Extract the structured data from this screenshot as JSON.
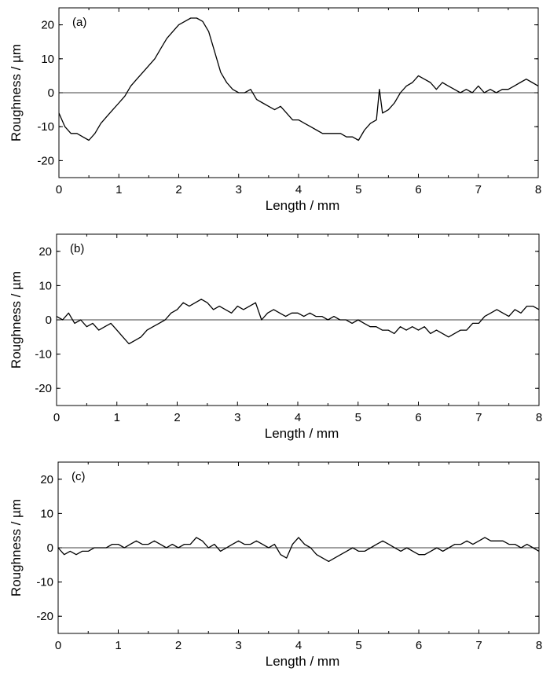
{
  "chart_data": [
    {
      "type": "line",
      "panel_label": "(a)",
      "xlabel": "Length / mm",
      "ylabel": "Roughness / µm",
      "xlim": [
        0,
        8
      ],
      "ylim": [
        -25,
        25
      ],
      "xticks": [
        0,
        1,
        2,
        3,
        4,
        5,
        6,
        7,
        8
      ],
      "yticks": [
        -20,
        -10,
        0,
        10,
        20
      ],
      "zero_line": true,
      "series": [
        {
          "color": "#000000",
          "x": [
            0,
            0.1,
            0.2,
            0.3,
            0.4,
            0.5,
            0.6,
            0.7,
            0.8,
            0.9,
            1.0,
            1.1,
            1.2,
            1.3,
            1.4,
            1.5,
            1.6,
            1.7,
            1.8,
            1.9,
            2.0,
            2.1,
            2.2,
            2.3,
            2.4,
            2.5,
            2.6,
            2.7,
            2.8,
            2.9,
            3.0,
            3.1,
            3.2,
            3.3,
            3.4,
            3.5,
            3.6,
            3.7,
            3.8,
            3.9,
            4.0,
            4.1,
            4.2,
            4.3,
            4.4,
            4.5,
            4.6,
            4.7,
            4.8,
            4.9,
            5.0,
            5.1,
            5.2,
            5.3,
            5.35,
            5.4,
            5.5,
            5.6,
            5.7,
            5.8,
            5.9,
            6.0,
            6.1,
            6.2,
            6.3,
            6.4,
            6.5,
            6.6,
            6.7,
            6.8,
            6.9,
            7.0,
            7.1,
            7.2,
            7.3,
            7.4,
            7.5,
            7.6,
            7.7,
            7.8,
            7.9,
            8.0
          ],
          "y": [
            -6,
            -10,
            -12,
            -12,
            -13,
            -14,
            -12,
            -9,
            -7,
            -5,
            -3,
            -1,
            2,
            4,
            6,
            8,
            10,
            13,
            16,
            18,
            20,
            21,
            22,
            22,
            21,
            18,
            12,
            6,
            3,
            1,
            0,
            0,
            1,
            -2,
            -3,
            -4,
            -5,
            -4,
            -6,
            -8,
            -8,
            -9,
            -10,
            -11,
            -12,
            -12,
            -12,
            -12,
            -13,
            -13,
            -14,
            -11,
            -9,
            -8,
            1,
            -6,
            -5,
            -3,
            0,
            2,
            3,
            5,
            4,
            3,
            1,
            3,
            2,
            1,
            0,
            1,
            0,
            2,
            0,
            1,
            0,
            1,
            1,
            2,
            3,
            4,
            3,
            2
          ]
        }
      ]
    },
    {
      "type": "line",
      "panel_label": "(b)",
      "xlabel": "Length / mm",
      "ylabel": "Roughness / µm",
      "xlim": [
        0,
        8
      ],
      "ylim": [
        -25,
        25
      ],
      "xticks": [
        0,
        1,
        2,
        3,
        4,
        5,
        6,
        7,
        8
      ],
      "yticks": [
        -20,
        -10,
        0,
        10,
        20
      ],
      "zero_line": true,
      "series": [
        {
          "color": "#000000",
          "x": [
            0,
            0.1,
            0.2,
            0.3,
            0.4,
            0.5,
            0.6,
            0.7,
            0.8,
            0.9,
            1.0,
            1.1,
            1.2,
            1.3,
            1.4,
            1.5,
            1.6,
            1.7,
            1.8,
            1.9,
            2.0,
            2.1,
            2.2,
            2.3,
            2.4,
            2.5,
            2.6,
            2.7,
            2.8,
            2.9,
            3.0,
            3.1,
            3.2,
            3.3,
            3.4,
            3.5,
            3.6,
            3.7,
            3.8,
            3.9,
            4.0,
            4.1,
            4.2,
            4.3,
            4.4,
            4.5,
            4.6,
            4.7,
            4.8,
            4.9,
            5.0,
            5.1,
            5.2,
            5.3,
            5.4,
            5.5,
            5.6,
            5.7,
            5.8,
            5.9,
            6.0,
            6.1,
            6.2,
            6.3,
            6.4,
            6.5,
            6.6,
            6.7,
            6.8,
            6.9,
            7.0,
            7.1,
            7.2,
            7.3,
            7.4,
            7.5,
            7.6,
            7.7,
            7.8,
            7.9,
            8.0
          ],
          "y": [
            1,
            0,
            2,
            -1,
            0,
            -2,
            -1,
            -3,
            -2,
            -1,
            -3,
            -5,
            -7,
            -6,
            -5,
            -3,
            -2,
            -1,
            0,
            2,
            3,
            5,
            4,
            5,
            6,
            5,
            3,
            4,
            3,
            2,
            4,
            3,
            4,
            5,
            0,
            2,
            3,
            2,
            1,
            2,
            2,
            1,
            2,
            1,
            1,
            0,
            1,
            0,
            0,
            -1,
            0,
            -1,
            -2,
            -2,
            -3,
            -3,
            -4,
            -2,
            -3,
            -2,
            -3,
            -2,
            -4,
            -3,
            -4,
            -5,
            -4,
            -3,
            -3,
            -1,
            -1,
            1,
            2,
            3,
            2,
            1,
            3,
            2,
            4,
            4,
            3
          ]
        }
      ]
    },
    {
      "type": "line",
      "panel_label": "(c)",
      "xlabel": "Length / mm",
      "ylabel": "Roughness / µm",
      "xlim": [
        0,
        8
      ],
      "ylim": [
        -25,
        25
      ],
      "xticks": [
        0,
        1,
        2,
        3,
        4,
        5,
        6,
        7,
        8
      ],
      "yticks": [
        -20,
        -10,
        0,
        10,
        20
      ],
      "zero_line": true,
      "series": [
        {
          "color": "#000000",
          "x": [
            0,
            0.1,
            0.2,
            0.3,
            0.4,
            0.5,
            0.6,
            0.7,
            0.8,
            0.9,
            1.0,
            1.1,
            1.2,
            1.3,
            1.4,
            1.5,
            1.6,
            1.7,
            1.8,
            1.9,
            2.0,
            2.1,
            2.2,
            2.3,
            2.4,
            2.5,
            2.6,
            2.7,
            2.8,
            2.9,
            3.0,
            3.1,
            3.2,
            3.3,
            3.4,
            3.5,
            3.6,
            3.7,
            3.8,
            3.9,
            4.0,
            4.1,
            4.2,
            4.3,
            4.4,
            4.5,
            4.6,
            4.7,
            4.8,
            4.9,
            5.0,
            5.1,
            5.2,
            5.3,
            5.4,
            5.5,
            5.6,
            5.7,
            5.8,
            5.9,
            6.0,
            6.1,
            6.2,
            6.3,
            6.4,
            6.5,
            6.6,
            6.7,
            6.8,
            6.9,
            7.0,
            7.1,
            7.2,
            7.3,
            7.4,
            7.5,
            7.6,
            7.7,
            7.8,
            7.9,
            8.0
          ],
          "y": [
            0,
            -2,
            -1,
            -2,
            -1,
            -1,
            0,
            0,
            0,
            1,
            1,
            0,
            1,
            2,
            1,
            1,
            2,
            1,
            0,
            1,
            0,
            1,
            1,
            3,
            2,
            0,
            1,
            -1,
            0,
            1,
            2,
            1,
            1,
            2,
            1,
            0,
            1,
            -2,
            -3,
            1,
            3,
            1,
            0,
            -2,
            -3,
            -4,
            -3,
            -2,
            -1,
            0,
            -1,
            -1,
            0,
            1,
            2,
            1,
            0,
            -1,
            0,
            -1,
            -2,
            -2,
            -1,
            0,
            -1,
            0,
            1,
            1,
            2,
            1,
            2,
            3,
            2,
            2,
            2,
            1,
            1,
            0,
            1,
            0,
            -1
          ]
        }
      ]
    }
  ]
}
